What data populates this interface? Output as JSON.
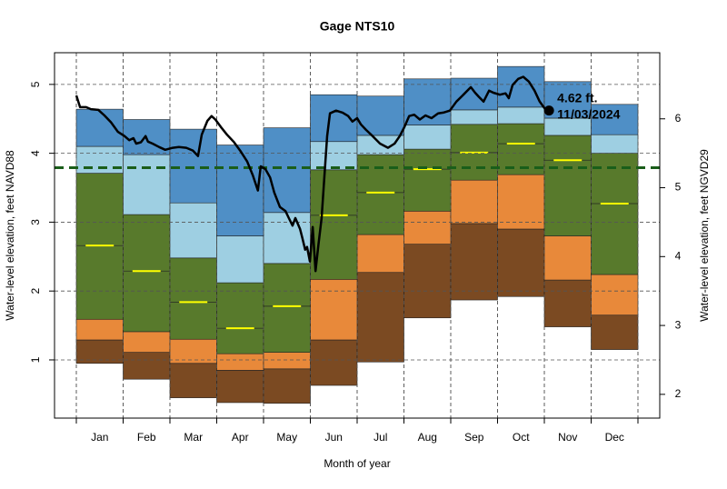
{
  "chart_data": {
    "type": "percentile-bands",
    "title": "Gage NTS10",
    "xlabel": "Month of year",
    "ylabel": "Water-level elevation, feet NAVD88",
    "y2label": "Water-level elevation, feet NGVD29",
    "categories": [
      "Jan",
      "Feb",
      "Mar",
      "Apr",
      "May",
      "Jun",
      "Jul",
      "Aug",
      "Sep",
      "Oct",
      "Nov",
      "Dec"
    ],
    "xlim": [
      -0.466,
      12.466
    ],
    "ylim": [
      0.155,
      5.46
    ],
    "yticks": [
      1,
      2,
      3,
      4,
      5
    ],
    "y2lim": [
      1.655,
      6.96
    ],
    "y2ticks": [
      2,
      3,
      4,
      5,
      6
    ],
    "grid": true,
    "series": [
      {
        "values": [
          0.95,
          0.72,
          0.45,
          0.38,
          0.37,
          0.63,
          0.97,
          1.61,
          1.87,
          1.92,
          1.48,
          1.15
        ]
      },
      {
        "values": [
          1.29,
          1.11,
          0.95,
          0.85,
          0.87,
          1.29,
          2.27,
          2.68,
          2.98,
          2.9,
          2.16,
          1.65
        ],
        "color": "#7b4a22"
      },
      {
        "values": [
          1.59,
          1.41,
          1.3,
          1.09,
          1.11,
          2.17,
          2.82,
          3.16,
          3.61,
          3.69,
          2.8,
          2.24
        ],
        "color": "#e8893a"
      },
      {
        "values": [
          2.66,
          2.29,
          1.84,
          1.46,
          1.78,
          3.1,
          3.43,
          3.77,
          4.01,
          4.14,
          3.9,
          3.27
        ],
        "color": "#587a2c",
        "line_color": "#ffff00"
      },
      {
        "values": [
          3.71,
          3.11,
          2.48,
          2.12,
          2.4,
          3.76,
          3.98,
          4.06,
          4.42,
          4.43,
          4.26,
          4.0
        ],
        "color": "#587a2c"
      },
      {
        "values": [
          4.1,
          3.98,
          3.28,
          2.8,
          3.14,
          4.17,
          4.26,
          4.41,
          4.63,
          4.67,
          4.51,
          4.27
        ],
        "color": "#9ecfe2"
      },
      {
        "values": [
          4.64,
          4.49,
          4.35,
          4.12,
          4.37,
          4.85,
          4.83,
          5.08,
          5.09,
          5.26,
          5.04,
          4.71
        ],
        "color": "#4f8fc6"
      }
    ],
    "reference_line": {
      "value": 3.79,
      "color": "#1a5e1a"
    },
    "current": {
      "color": "#000000",
      "x": [
        0.0,
        0.08,
        0.21,
        0.31,
        0.47,
        0.6,
        0.74,
        0.89,
        1.03,
        1.13,
        1.22,
        1.28,
        1.38,
        1.48,
        1.53,
        1.63,
        1.77,
        1.9,
        2.06,
        2.19,
        2.35,
        2.49,
        2.6,
        2.68,
        2.8,
        2.89,
        2.97,
        3.09,
        3.22,
        3.36,
        3.5,
        3.65,
        3.77,
        3.88,
        3.94,
        4.04,
        4.14,
        4.23,
        4.35,
        4.47,
        4.54,
        4.62,
        4.68,
        4.78,
        4.83,
        4.89,
        4.93,
        4.99,
        5.05,
        5.11,
        5.17,
        5.24,
        5.3,
        5.36,
        5.42,
        5.55,
        5.69,
        5.81,
        5.9,
        6.0,
        6.08,
        6.19,
        6.33,
        6.49,
        6.66,
        6.8,
        6.91,
        7.01,
        7.11,
        7.22,
        7.34,
        7.46,
        7.59,
        7.73,
        7.84,
        7.98,
        8.12,
        8.27,
        8.43,
        8.52,
        8.6,
        8.7,
        8.82,
        8.91,
        9.05,
        9.17,
        9.24,
        9.32,
        9.44,
        9.55,
        9.67,
        9.79,
        9.9,
        10.02,
        10.1
      ],
      "values": [
        4.84,
        4.67,
        4.67,
        4.64,
        4.63,
        4.55,
        4.45,
        4.31,
        4.25,
        4.19,
        4.22,
        4.14,
        4.16,
        4.25,
        4.17,
        4.14,
        4.09,
        4.05,
        4.08,
        4.09,
        4.08,
        4.04,
        3.96,
        4.27,
        4.47,
        4.54,
        4.49,
        4.38,
        4.27,
        4.17,
        4.04,
        3.88,
        3.68,
        3.46,
        3.81,
        3.77,
        3.65,
        3.43,
        3.22,
        3.16,
        3.06,
        2.95,
        3.06,
        2.9,
        2.77,
        2.6,
        2.64,
        2.43,
        2.93,
        2.29,
        2.66,
        3.06,
        3.65,
        4.25,
        4.58,
        4.62,
        4.59,
        4.54,
        4.46,
        4.51,
        4.42,
        4.34,
        4.25,
        4.14,
        4.08,
        4.14,
        4.25,
        4.38,
        4.54,
        4.56,
        4.49,
        4.55,
        4.51,
        4.58,
        4.59,
        4.62,
        4.75,
        4.85,
        4.96,
        4.88,
        4.82,
        4.75,
        4.91,
        4.88,
        4.85,
        4.87,
        4.8,
        4.99,
        5.08,
        5.11,
        5.04,
        4.91,
        4.75,
        4.64,
        4.62
      ]
    },
    "annotation": {
      "label": "4.62 ft.",
      "date": "11/03/2024"
    }
  }
}
